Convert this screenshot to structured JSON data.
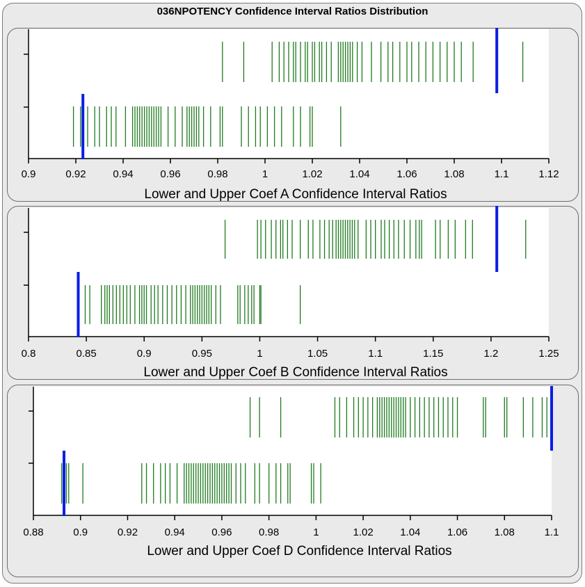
{
  "title": "036NPOTENCY Confidence Interval Ratios Distribution",
  "colors": {
    "interval": "#1e7a1e",
    "marker": "#0a1ee6",
    "plot_bg": "#ffffff",
    "panel_bg": "#eaeaea"
  },
  "chart_data": [
    {
      "type": "scatter",
      "xlabel": "Lower and Upper Coef A Confidence Interval Ratios",
      "xlim": [
        0.9,
        1.12
      ],
      "xticks": [
        0.9,
        0.92,
        0.94,
        0.96,
        0.98,
        1,
        1.02,
        1.04,
        1.06,
        1.08,
        1.1,
        1.12
      ],
      "tick_labels": [
        "0.9",
        "0.92",
        "0.94",
        "0.96",
        "0.98",
        "1",
        "1.02",
        "1.04",
        "1.06",
        "1.08",
        "1.1",
        "1.12"
      ],
      "upper_series": [
        0.982,
        0.991,
        1.003,
        1.006,
        1.008,
        1.01,
        1.012,
        1.013,
        1.015,
        1.017,
        1.018,
        1.02,
        1.021,
        1.023,
        1.024,
        1.026,
        1.028,
        1.031,
        1.032,
        1.033,
        1.034,
        1.035,
        1.036,
        1.037,
        1.039,
        1.041,
        1.045,
        1.049,
        1.052,
        1.054,
        1.057,
        1.06,
        1.062,
        1.065,
        1.068,
        1.071,
        1.074,
        1.077,
        1.08,
        1.083,
        1.088,
        1.109
      ],
      "lower_series": [
        0.919,
        0.922,
        0.925,
        0.928,
        0.93,
        0.933,
        0.935,
        0.937,
        0.941,
        0.944,
        0.945,
        0.946,
        0.947,
        0.948,
        0.949,
        0.95,
        0.951,
        0.952,
        0.953,
        0.954,
        0.955,
        0.956,
        0.959,
        0.962,
        0.965,
        0.967,
        0.968,
        0.969,
        0.97,
        0.971,
        0.972,
        0.974,
        0.977,
        0.981,
        0.982,
        0.99,
        0.993,
        0.996,
        0.998,
        1.001,
        1.004,
        1.007,
        1.012,
        1.015,
        1.019,
        1.02,
        1.032
      ],
      "upper_marker": 1.098,
      "lower_marker": 0.923
    },
    {
      "type": "scatter",
      "xlabel": "Lower and Upper Coef B Confidence Interval Ratios",
      "xlim": [
        0.8,
        1.25
      ],
      "xticks": [
        0.8,
        0.85,
        0.9,
        0.95,
        1,
        1.05,
        1.1,
        1.15,
        1.2,
        1.25
      ],
      "tick_labels": [
        "0.8",
        "0.85",
        "0.9",
        "0.95",
        "1",
        "1.05",
        "1.1",
        "1.15",
        "1.2",
        "1.25"
      ],
      "upper_series": [
        0.97,
        0.998,
        1.001,
        1.005,
        1.01,
        1.014,
        1.018,
        1.02,
        1.024,
        1.028,
        1.035,
        1.042,
        1.046,
        1.052,
        1.056,
        1.06,
        1.063,
        1.066,
        1.068,
        1.07,
        1.072,
        1.074,
        1.076,
        1.078,
        1.08,
        1.082,
        1.085,
        1.092,
        1.096,
        1.1,
        1.105,
        1.108,
        1.112,
        1.116,
        1.12,
        1.125,
        1.13,
        1.135,
        1.138,
        1.14,
        1.152,
        1.156,
        1.163,
        1.169,
        1.178,
        1.184,
        1.23
      ],
      "lower_series": [
        0.849,
        0.853,
        0.863,
        0.866,
        0.868,
        0.87,
        0.873,
        0.876,
        0.879,
        0.882,
        0.885,
        0.888,
        0.892,
        0.896,
        0.898,
        0.9,
        0.902,
        0.906,
        0.909,
        0.912,
        0.916,
        0.92,
        0.924,
        0.928,
        0.932,
        0.936,
        0.94,
        0.942,
        0.944,
        0.946,
        0.948,
        0.95,
        0.952,
        0.954,
        0.956,
        0.958,
        0.962,
        0.966,
        0.981,
        0.983,
        0.987,
        0.99,
        0.993,
        0.995,
        1.0,
        1.001,
        1.035
      ],
      "upper_marker": 1.205,
      "lower_marker": 0.843
    },
    {
      "type": "scatter",
      "xlabel": "Lower and Upper Coef D Confidence Interval Ratios",
      "xlim": [
        0.88,
        1.1
      ],
      "xticks": [
        0.88,
        0.9,
        0.92,
        0.94,
        0.96,
        0.98,
        1,
        1.02,
        1.04,
        1.06,
        1.08,
        1.1
      ],
      "tick_labels": [
        "0.88",
        "0.9",
        "0.92",
        "0.94",
        "0.96",
        "0.98",
        "1",
        "1.02",
        "1.04",
        "1.06",
        "1.08",
        "1.1"
      ],
      "upper_series": [
        0.972,
        0.976,
        0.985,
        1.008,
        1.01,
        1.013,
        1.016,
        1.018,
        1.02,
        1.022,
        1.024,
        1.026,
        1.027,
        1.028,
        1.029,
        1.03,
        1.031,
        1.032,
        1.033,
        1.034,
        1.035,
        1.036,
        1.037,
        1.038,
        1.04,
        1.042,
        1.044,
        1.046,
        1.048,
        1.05,
        1.052,
        1.054,
        1.056,
        1.058,
        1.06,
        1.071,
        1.072,
        1.08,
        1.081,
        1.088,
        1.092,
        1.096,
        1.098
      ],
      "lower_series": [
        0.892,
        0.894,
        0.895,
        0.901,
        0.926,
        0.928,
        0.931,
        0.934,
        0.936,
        0.938,
        0.941,
        0.944,
        0.945,
        0.946,
        0.947,
        0.948,
        0.949,
        0.95,
        0.951,
        0.952,
        0.953,
        0.954,
        0.955,
        0.956,
        0.957,
        0.958,
        0.959,
        0.96,
        0.961,
        0.962,
        0.963,
        0.964,
        0.966,
        0.968,
        0.97,
        0.974,
        0.976,
        0.98,
        0.983,
        0.985,
        0.988,
        0.989,
        0.998,
        0.999,
        1.002
      ],
      "upper_marker": 1.1,
      "lower_marker": 0.893
    }
  ]
}
